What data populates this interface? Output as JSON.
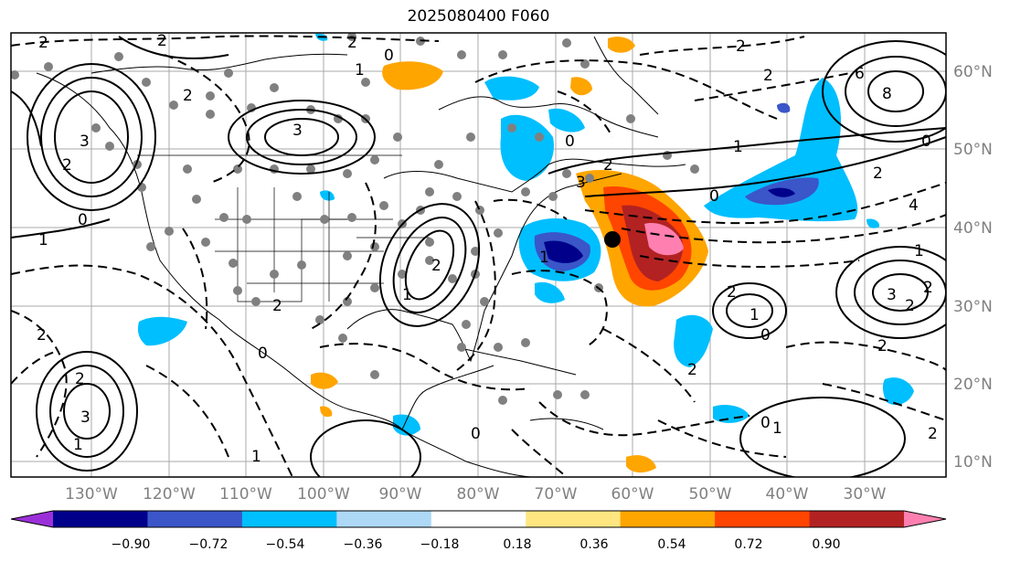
{
  "title": "2025080400 F060",
  "lat_labels": [
    "60°N",
    "50°N",
    "40°N",
    "30°N",
    "20°N",
    "10°N"
  ],
  "lon_labels": [
    "130°W",
    "120°W",
    "110°W",
    "100°W",
    "90°W",
    "80°W",
    "70°W",
    "60°W",
    "50°W",
    "40°W",
    "30°W"
  ],
  "colorbar": {
    "ticks": [
      "−0.90",
      "−0.72",
      "−0.54",
      "−0.36",
      "−0.18",
      "0.18",
      "0.36",
      "0.54",
      "0.72",
      "0.90"
    ],
    "colors": [
      "#9b30d9",
      "#00008b",
      "#3a56c8",
      "#00bfff",
      "#add8f6",
      "#ffffff",
      "#ffe680",
      "#ffa500",
      "#ff4500",
      "#b22222",
      "#ff80b0"
    ]
  },
  "contour_labels": [
    "2",
    "2",
    "2",
    "3",
    "1",
    "0",
    "2",
    "3",
    "2",
    "0",
    "1",
    "2",
    "2",
    "1",
    "1",
    "0",
    "2",
    "3",
    "1",
    "2",
    "0",
    "2",
    "6",
    "8",
    "0",
    "2",
    "4",
    "2",
    "2",
    "1",
    "2",
    "3",
    "2",
    "1",
    "0",
    "2",
    "0",
    "1",
    "2",
    "0",
    "2",
    "1",
    "0",
    "3",
    "1",
    "2"
  ],
  "marker": "black-dot"
}
